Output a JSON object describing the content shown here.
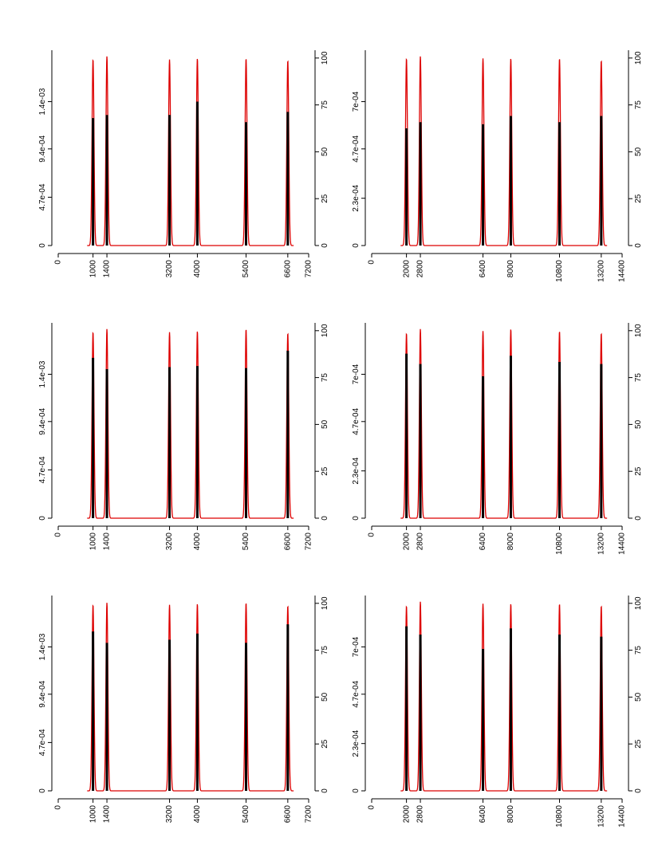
{
  "colors": {
    "density": "#dd0000",
    "bars": "#000000",
    "axis": "#000000"
  },
  "chart_data": [
    {
      "type": "line+bar",
      "x_range": [
        0,
        7200
      ],
      "x_ticks": [
        "0",
        "1000",
        "1400",
        "3200",
        "4000",
        "5400",
        "6600",
        "7200"
      ],
      "left_axis_range": [
        0,
        0.0019
      ],
      "left_ticks": [
        {
          "v": 0,
          "label": "0"
        },
        {
          "v": 0.00047,
          "label": "4.7e-04"
        },
        {
          "v": 0.00094,
          "label": "9.4e-04"
        },
        {
          "v": 0.0014,
          "label": "1.4e-03"
        }
      ],
      "right_axis_range": [
        0,
        100
      ],
      "right_ticks": [
        "0",
        "25",
        "50",
        "75",
        "100"
      ],
      "peaks": [
        1000,
        1400,
        3200,
        4000,
        5400,
        6600
      ],
      "peak_heights": [
        0.00181,
        0.00184,
        0.00181,
        0.00182,
        0.00182,
        0.0018
      ],
      "bars": [
        0.00124,
        0.00127,
        0.00127,
        0.0014,
        0.0012,
        0.0013
      ],
      "spread_sd": 28
    },
    {
      "type": "line+bar",
      "x_range": [
        0,
        14400
      ],
      "x_ticks": [
        "0",
        "2000",
        "2800",
        "6400",
        "8000",
        "10800",
        "13200",
        "14400"
      ],
      "left_axis_range": [
        0,
        0.00095
      ],
      "left_ticks": [
        {
          "v": 0,
          "label": "0"
        },
        {
          "v": 0.00023,
          "label": "2.3e-04"
        },
        {
          "v": 0.00047,
          "label": "4.7e-04"
        },
        {
          "v": 0.0007,
          "label": "7e-04"
        }
      ],
      "right_axis_range": [
        0,
        100
      ],
      "right_ticks": [
        "0",
        "25",
        "50",
        "75",
        "100"
      ],
      "peaks": [
        2000,
        2800,
        6400,
        8000,
        10800,
        13200
      ],
      "peak_heights": [
        0.00091,
        0.00092,
        0.00091,
        0.00091,
        0.00091,
        0.0009
      ],
      "bars": [
        0.00057,
        0.0006,
        0.00059,
        0.00063,
        0.0006,
        0.00063
      ],
      "spread_sd": 56
    },
    {
      "type": "line+bar",
      "x_range": [
        0,
        7200
      ],
      "x_ticks": [
        "0",
        "1000",
        "1400",
        "3200",
        "4000",
        "5400",
        "6600",
        "7200"
      ],
      "left_axis_range": [
        0,
        0.0019
      ],
      "left_ticks": [
        {
          "v": 0,
          "label": "0"
        },
        {
          "v": 0.00047,
          "label": "4.7e-04"
        },
        {
          "v": 0.00094,
          "label": "9.4e-04"
        },
        {
          "v": 0.0014,
          "label": "1.4e-03"
        }
      ],
      "right_axis_range": [
        0,
        100
      ],
      "right_ticks": [
        "0",
        "25",
        "50",
        "75",
        "100"
      ],
      "peaks": [
        1000,
        1400,
        3200,
        4000,
        5400,
        6600
      ],
      "peak_heights": [
        0.00181,
        0.00184,
        0.00181,
        0.00182,
        0.00184,
        0.0018
      ],
      "bars": [
        0.00156,
        0.00145,
        0.00147,
        0.00148,
        0.00146,
        0.00163
      ],
      "spread_sd": 28
    },
    {
      "type": "line+bar",
      "x_range": [
        0,
        14400
      ],
      "x_ticks": [
        "0",
        "2000",
        "2800",
        "6400",
        "8000",
        "10800",
        "13200",
        "14400"
      ],
      "left_axis_range": [
        0,
        0.00095
      ],
      "left_ticks": [
        {
          "v": 0,
          "label": "0"
        },
        {
          "v": 0.00023,
          "label": "2.3e-04"
        },
        {
          "v": 0.00047,
          "label": "4.7e-04"
        },
        {
          "v": 0.0007,
          "label": "7e-04"
        }
      ],
      "right_axis_range": [
        0,
        100
      ],
      "right_ticks": [
        "0",
        "25",
        "50",
        "75",
        "100"
      ],
      "peaks": [
        2000,
        2800,
        6400,
        8000,
        10800,
        13200
      ],
      "peak_heights": [
        0.0009,
        0.00092,
        0.00091,
        0.00092,
        0.00091,
        0.0009
      ],
      "bars": [
        0.0008,
        0.00075,
        0.00069,
        0.00079,
        0.00076,
        0.00075
      ],
      "spread_sd": 56
    },
    {
      "type": "line+bar",
      "x_range": [
        0,
        7200
      ],
      "x_ticks": [
        "0",
        "1000",
        "1400",
        "3200",
        "4000",
        "5400",
        "6600",
        "7200"
      ],
      "left_axis_range": [
        0,
        0.0019
      ],
      "left_ticks": [
        {
          "v": 0,
          "label": "0"
        },
        {
          "v": 0.00047,
          "label": "4.7e-04"
        },
        {
          "v": 0.00094,
          "label": "9.4e-04"
        },
        {
          "v": 0.0014,
          "label": "1.4e-03"
        }
      ],
      "right_axis_range": [
        0,
        100
      ],
      "right_ticks": [
        "0",
        "25",
        "50",
        "75",
        "100"
      ],
      "peaks": [
        1000,
        1400,
        3200,
        4000,
        5400,
        6600
      ],
      "peak_heights": [
        0.00181,
        0.00183,
        0.00181,
        0.00182,
        0.00183,
        0.0018
      ],
      "bars": [
        0.00155,
        0.00144,
        0.00147,
        0.00153,
        0.00144,
        0.00162
      ],
      "spread_sd": 28
    },
    {
      "type": "line+bar",
      "x_range": [
        0,
        14400
      ],
      "x_ticks": [
        "0",
        "2000",
        "2800",
        "6400",
        "8000",
        "10800",
        "13200",
        "14400"
      ],
      "left_axis_range": [
        0,
        0.00095
      ],
      "left_ticks": [
        {
          "v": 0,
          "label": "0"
        },
        {
          "v": 0.00023,
          "label": "2.3e-04"
        },
        {
          "v": 0.00047,
          "label": "4.7e-04"
        },
        {
          "v": 0.0007,
          "label": "7e-04"
        }
      ],
      "right_axis_range": [
        0,
        100
      ],
      "right_ticks": [
        "0",
        "25",
        "50",
        "75",
        "100"
      ],
      "peaks": [
        2000,
        2800,
        6400,
        8000,
        10800,
        13200
      ],
      "peak_heights": [
        0.0009,
        0.00092,
        0.00091,
        0.00091,
        0.00091,
        0.0009
      ],
      "bars": [
        0.0008,
        0.00076,
        0.00069,
        0.00079,
        0.00076,
        0.00075
      ],
      "spread_sd": 56
    }
  ]
}
